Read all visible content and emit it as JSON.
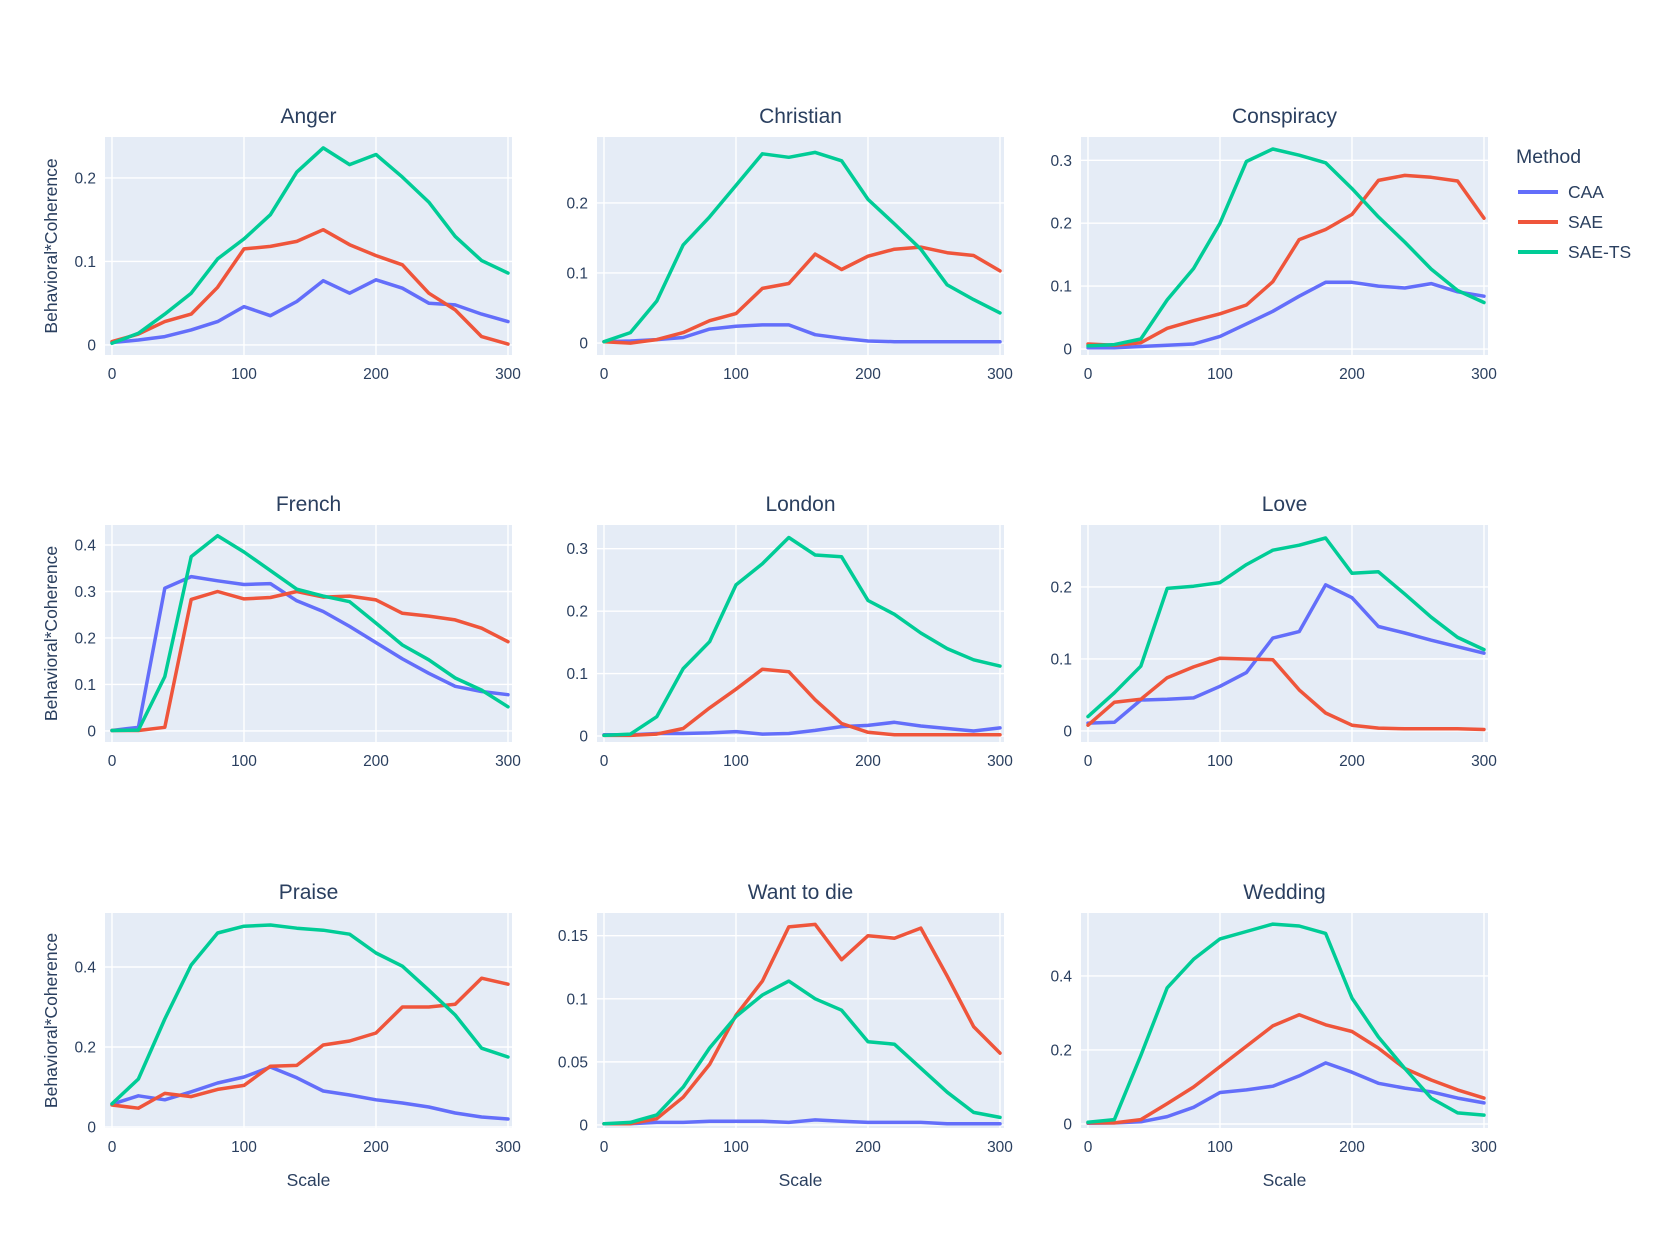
{
  "figure": {
    "ylabel": "Behavioral*Coherence",
    "xlabel": "Scale",
    "text_color": "#2a3f5f",
    "plot_bg": "#e5ecf6",
    "grid_color": "#ffffff"
  },
  "legend": {
    "title": "Method",
    "entries": [
      {
        "label": "CAA",
        "color": "#636efa"
      },
      {
        "label": "SAE",
        "color": "#ef553b"
      },
      {
        "label": "SAE-TS",
        "color": "#00cc96"
      }
    ]
  },
  "chart_data": [
    {
      "type": "line",
      "title": "Anger",
      "x": [
        0,
        20,
        40,
        60,
        80,
        100,
        120,
        140,
        160,
        180,
        200,
        220,
        240,
        260,
        280,
        300
      ],
      "xticks": [
        0,
        100,
        200,
        300
      ],
      "yticks": [
        0,
        0.1,
        0.2
      ],
      "ylim": [
        -0.012,
        0.249
      ],
      "series": [
        {
          "name": "CAA",
          "values": [
            0.003,
            0.006,
            0.01,
            0.018,
            0.028,
            0.046,
            0.035,
            0.052,
            0.077,
            0.062,
            0.078,
            0.068,
            0.05,
            0.048,
            0.037,
            0.028
          ]
        },
        {
          "name": "SAE",
          "values": [
            0.004,
            0.013,
            0.028,
            0.037,
            0.069,
            0.115,
            0.118,
            0.124,
            0.138,
            0.12,
            0.107,
            0.096,
            0.062,
            0.042,
            0.01,
            0.001
          ]
        },
        {
          "name": "SAE-TS",
          "values": [
            0.002,
            0.014,
            0.037,
            0.062,
            0.103,
            0.127,
            0.156,
            0.207,
            0.236,
            0.216,
            0.228,
            0.201,
            0.171,
            0.13,
            0.101,
            0.086
          ]
        }
      ]
    },
    {
      "type": "line",
      "title": "Christian",
      "x": [
        0,
        20,
        40,
        60,
        80,
        100,
        120,
        140,
        160,
        180,
        200,
        220,
        240,
        260,
        280,
        300
      ],
      "xticks": [
        0,
        100,
        200,
        300
      ],
      "yticks": [
        0,
        0.1,
        0.2
      ],
      "ylim": [
        -0.017,
        0.294
      ],
      "series": [
        {
          "name": "CAA",
          "values": [
            0.002,
            0.003,
            0.005,
            0.008,
            0.02,
            0.024,
            0.026,
            0.026,
            0.012,
            0.007,
            0.003,
            0.002,
            0.002,
            0.002,
            0.002,
            0.002
          ]
        },
        {
          "name": "SAE",
          "values": [
            0.002,
            0.0,
            0.005,
            0.015,
            0.032,
            0.042,
            0.078,
            0.085,
            0.127,
            0.105,
            0.124,
            0.134,
            0.137,
            0.129,
            0.125,
            0.103
          ]
        },
        {
          "name": "SAE-TS",
          "values": [
            0.002,
            0.015,
            0.06,
            0.14,
            0.18,
            0.225,
            0.27,
            0.265,
            0.272,
            0.26,
            0.205,
            0.17,
            0.134,
            0.083,
            0.062,
            0.043
          ]
        }
      ]
    },
    {
      "type": "line",
      "title": "Conspiracy",
      "x": [
        0,
        20,
        40,
        60,
        80,
        100,
        120,
        140,
        160,
        180,
        200,
        220,
        240,
        260,
        280,
        300
      ],
      "xticks": [
        0,
        100,
        200,
        300
      ],
      "yticks": [
        0,
        0.1,
        0.2,
        0.3
      ],
      "ylim": [
        -0.0095,
        0.337
      ],
      "series": [
        {
          "name": "CAA",
          "values": [
            0.002,
            0.002,
            0.004,
            0.006,
            0.008,
            0.02,
            0.04,
            0.06,
            0.084,
            0.106,
            0.106,
            0.1,
            0.097,
            0.104,
            0.091,
            0.084
          ]
        },
        {
          "name": "SAE",
          "values": [
            0.008,
            0.006,
            0.01,
            0.033,
            0.045,
            0.056,
            0.07,
            0.107,
            0.174,
            0.19,
            0.214,
            0.268,
            0.276,
            0.273,
            0.267,
            0.208
          ]
        },
        {
          "name": "SAE-TS",
          "values": [
            0.005,
            0.007,
            0.016,
            0.078,
            0.128,
            0.2,
            0.298,
            0.318,
            0.308,
            0.296,
            0.255,
            0.21,
            0.17,
            0.127,
            0.093,
            0.074
          ]
        }
      ]
    },
    {
      "type": "line",
      "title": "French",
      "x": [
        0,
        20,
        40,
        60,
        80,
        100,
        120,
        140,
        160,
        180,
        200,
        220,
        240,
        260,
        280,
        300
      ],
      "xticks": [
        0,
        100,
        200,
        300
      ],
      "yticks": [
        0,
        0.1,
        0.2,
        0.3,
        0.4
      ],
      "ylim": [
        -0.0237,
        0.443
      ],
      "series": [
        {
          "name": "CAA",
          "values": [
            0.001,
            0.008,
            0.307,
            0.332,
            0.323,
            0.315,
            0.317,
            0.28,
            0.257,
            0.225,
            0.19,
            0.155,
            0.124,
            0.096,
            0.085,
            0.078
          ]
        },
        {
          "name": "SAE",
          "values": [
            0.001,
            0.001,
            0.008,
            0.283,
            0.3,
            0.284,
            0.287,
            0.3,
            0.288,
            0.29,
            0.282,
            0.253,
            0.247,
            0.239,
            0.221,
            0.192
          ]
        },
        {
          "name": "SAE-TS",
          "values": [
            0.001,
            0.002,
            0.117,
            0.375,
            0.42,
            0.385,
            0.345,
            0.305,
            0.29,
            0.278,
            0.232,
            0.185,
            0.153,
            0.114,
            0.088,
            0.052
          ]
        }
      ]
    },
    {
      "type": "line",
      "title": "London",
      "x": [
        0,
        20,
        40,
        60,
        80,
        100,
        120,
        140,
        160,
        180,
        200,
        220,
        240,
        260,
        280,
        300
      ],
      "xticks": [
        0,
        100,
        200,
        300
      ],
      "yticks": [
        0,
        0.1,
        0.2,
        0.3
      ],
      "ylim": [
        -0.0096,
        0.338
      ],
      "series": [
        {
          "name": "CAA",
          "values": [
            0.002,
            0.002,
            0.004,
            0.004,
            0.005,
            0.007,
            0.003,
            0.004,
            0.009,
            0.015,
            0.017,
            0.022,
            0.016,
            0.012,
            0.008,
            0.013
          ]
        },
        {
          "name": "SAE",
          "values": [
            0.001,
            0.001,
            0.003,
            0.012,
            0.045,
            0.075,
            0.107,
            0.103,
            0.058,
            0.02,
            0.006,
            0.002,
            0.002,
            0.002,
            0.002,
            0.002
          ]
        },
        {
          "name": "SAE-TS",
          "values": [
            0.001,
            0.003,
            0.031,
            0.108,
            0.151,
            0.242,
            0.276,
            0.318,
            0.29,
            0.287,
            0.217,
            0.195,
            0.165,
            0.14,
            0.122,
            0.112
          ]
        }
      ]
    },
    {
      "type": "line",
      "title": "Love",
      "x": [
        0,
        20,
        40,
        60,
        80,
        100,
        120,
        140,
        160,
        180,
        200,
        220,
        240,
        260,
        280,
        300
      ],
      "xticks": [
        0,
        100,
        200,
        300
      ],
      "yticks": [
        0,
        0.1,
        0.2
      ],
      "ylim": [
        -0.0153,
        0.286
      ],
      "series": [
        {
          "name": "CAA",
          "values": [
            0.011,
            0.012,
            0.043,
            0.044,
            0.046,
            0.062,
            0.081,
            0.129,
            0.138,
            0.203,
            0.185,
            0.145,
            0.136,
            0.126,
            0.117,
            0.108
          ]
        },
        {
          "name": "SAE",
          "values": [
            0.008,
            0.04,
            0.044,
            0.074,
            0.089,
            0.101,
            0.1,
            0.099,
            0.057,
            0.025,
            0.008,
            0.004,
            0.003,
            0.003,
            0.003,
            0.002
          ]
        },
        {
          "name": "SAE-TS",
          "values": [
            0.02,
            0.053,
            0.09,
            0.198,
            0.201,
            0.206,
            0.231,
            0.251,
            0.258,
            0.268,
            0.219,
            0.221,
            0.19,
            0.158,
            0.13,
            0.113
          ]
        }
      ]
    },
    {
      "type": "line",
      "title": "Praise",
      "x": [
        0,
        20,
        40,
        60,
        80,
        100,
        120,
        140,
        160,
        180,
        200,
        220,
        240,
        260,
        280,
        300
      ],
      "xticks": [
        0,
        100,
        200,
        300
      ],
      "yticks": [
        0,
        0.2,
        0.4
      ],
      "ylim": [
        -0.0025,
        0.535
      ],
      "series": [
        {
          "name": "CAA",
          "values": [
            0.057,
            0.078,
            0.068,
            0.088,
            0.11,
            0.125,
            0.15,
            0.123,
            0.09,
            0.08,
            0.068,
            0.06,
            0.05,
            0.035,
            0.025,
            0.02
          ]
        },
        {
          "name": "SAE",
          "values": [
            0.055,
            0.047,
            0.084,
            0.076,
            0.094,
            0.104,
            0.152,
            0.154,
            0.205,
            0.215,
            0.235,
            0.3,
            0.3,
            0.307,
            0.372,
            0.357
          ]
        },
        {
          "name": "SAE-TS",
          "values": [
            0.058,
            0.12,
            0.27,
            0.405,
            0.485,
            0.502,
            0.505,
            0.497,
            0.492,
            0.482,
            0.435,
            0.402,
            0.342,
            0.28,
            0.197,
            0.175
          ]
        }
      ]
    },
    {
      "type": "line",
      "title": "Want to die",
      "x": [
        0,
        20,
        40,
        60,
        80,
        100,
        120,
        140,
        160,
        180,
        200,
        220,
        240,
        260,
        280,
        300
      ],
      "xticks": [
        0,
        100,
        200,
        300
      ],
      "yticks": [
        0,
        0.05,
        0.1,
        0.15
      ],
      "ylim": [
        -0.0024,
        0.168
      ],
      "series": [
        {
          "name": "CAA",
          "values": [
            0.001,
            0.001,
            0.002,
            0.002,
            0.003,
            0.003,
            0.003,
            0.002,
            0.004,
            0.003,
            0.002,
            0.002,
            0.002,
            0.001,
            0.001,
            0.001
          ]
        },
        {
          "name": "SAE",
          "values": [
            0.001,
            0.001,
            0.005,
            0.022,
            0.048,
            0.087,
            0.114,
            0.157,
            0.159,
            0.131,
            0.15,
            0.148,
            0.156,
            0.118,
            0.078,
            0.057
          ]
        },
        {
          "name": "SAE-TS",
          "values": [
            0.001,
            0.002,
            0.008,
            0.03,
            0.061,
            0.086,
            0.103,
            0.114,
            0.1,
            0.091,
            0.066,
            0.064,
            0.045,
            0.026,
            0.01,
            0.006
          ]
        }
      ]
    },
    {
      "type": "line",
      "title": "Wedding",
      "x": [
        0,
        20,
        40,
        60,
        80,
        100,
        120,
        140,
        160,
        180,
        200,
        220,
        240,
        260,
        280,
        300
      ],
      "xticks": [
        0,
        100,
        200,
        300
      ],
      "yticks": [
        0,
        0.2,
        0.4
      ],
      "ylim": [
        -0.0108,
        0.57
      ],
      "series": [
        {
          "name": "CAA",
          "values": [
            0.002,
            0.003,
            0.006,
            0.02,
            0.045,
            0.085,
            0.092,
            0.102,
            0.13,
            0.165,
            0.14,
            0.11,
            0.097,
            0.087,
            0.07,
            0.057
          ]
        },
        {
          "name": "SAE",
          "values": [
            0.003,
            0.003,
            0.012,
            0.055,
            0.1,
            0.155,
            0.21,
            0.265,
            0.295,
            0.268,
            0.25,
            0.205,
            0.15,
            0.119,
            0.092,
            0.07
          ]
        },
        {
          "name": "SAE-TS",
          "values": [
            0.005,
            0.012,
            0.185,
            0.368,
            0.445,
            0.5,
            0.52,
            0.54,
            0.535,
            0.515,
            0.34,
            0.235,
            0.15,
            0.07,
            0.03,
            0.024
          ]
        }
      ]
    }
  ]
}
